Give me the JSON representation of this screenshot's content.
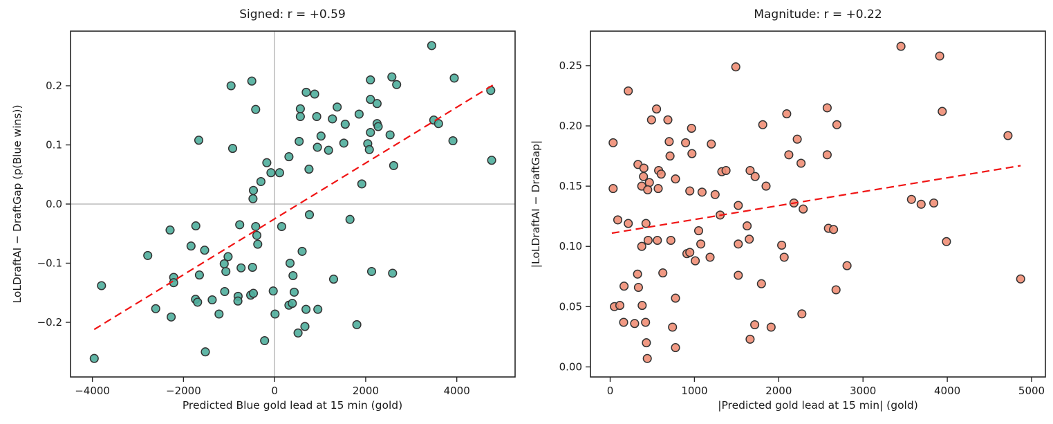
{
  "chart_data": [
    {
      "type": "scatter",
      "title": "Signed: r = +0.59",
      "xlabel": "Predicted Blue gold lead at 15 min (gold)",
      "ylabel": "LoLDraftAI − DraftGap (p(Blue wins))",
      "xlim": [
        -4480,
        5280
      ],
      "ylim": [
        -0.2924,
        0.2924
      ],
      "xticks": [
        -4000,
        -2000,
        0,
        2000,
        4000
      ],
      "xtick_labels": [
        "−4000",
        "−2000",
        "0",
        "2000",
        "4000"
      ],
      "yticks": [
        -0.2,
        -0.1,
        0.0,
        0.1,
        0.2
      ],
      "ytick_labels": [
        "−0.2",
        "−0.1",
        "0.0",
        "0.1",
        "0.2"
      ],
      "grid": false,
      "legend": null,
      "marker_color": "#4FAE9C",
      "marker_edge_color": "#333333",
      "trend_color": "#f01414",
      "ref_line_color": "#9a9a9a",
      "ref_lines": {
        "x": 0,
        "y": 0
      },
      "trend": {
        "style": "dashed",
        "x": [
          -3960,
          4790
        ],
        "y": [
          -0.212,
          0.201
        ]
      },
      "points": [
        [
          -955,
          0.2
        ],
        [
          -500,
          0.208
        ],
        [
          -415,
          0.16
        ],
        [
          -1665,
          0.108
        ],
        [
          -920,
          0.094
        ],
        [
          -170,
          0.07
        ],
        [
          -80,
          0.053
        ],
        [
          110,
          0.053
        ],
        [
          315,
          0.08
        ],
        [
          -300,
          0.038
        ],
        [
          -465,
          0.023
        ],
        [
          -475,
          0.009
        ],
        [
          3450,
          0.268
        ],
        [
          2575,
          0.215
        ],
        [
          2105,
          0.21
        ],
        [
          2680,
          0.202
        ],
        [
          3945,
          0.213
        ],
        [
          4745,
          0.192
        ],
        [
          695,
          0.189
        ],
        [
          880,
          0.186
        ],
        [
          2105,
          0.177
        ],
        [
          2250,
          0.17
        ],
        [
          1375,
          0.164
        ],
        [
          565,
          0.161
        ],
        [
          565,
          0.148
        ],
        [
          925,
          0.148
        ],
        [
          1270,
          0.144
        ],
        [
          1855,
          0.152
        ],
        [
          1550,
          0.135
        ],
        [
          2250,
          0.136
        ],
        [
          2275,
          0.131
        ],
        [
          3495,
          0.142
        ],
        [
          3600,
          0.136
        ],
        [
          1020,
          0.115
        ],
        [
          540,
          0.106
        ],
        [
          2105,
          0.121
        ],
        [
          2535,
          0.117
        ],
        [
          1520,
          0.103
        ],
        [
          940,
          0.096
        ],
        [
          1185,
          0.091
        ],
        [
          2045,
          0.102
        ],
        [
          2080,
          0.092
        ],
        [
          3915,
          0.107
        ],
        [
          4765,
          0.074
        ],
        [
          2615,
          0.065
        ],
        [
          755,
          0.059
        ],
        [
          1915,
          0.034
        ],
        [
          -2295,
          -0.044
        ],
        [
          -1730,
          -0.037
        ],
        [
          -765,
          -0.035
        ],
        [
          -415,
          -0.038
        ],
        [
          -390,
          -0.053
        ],
        [
          -370,
          -0.068
        ],
        [
          155,
          -0.038
        ],
        [
          -1835,
          -0.071
        ],
        [
          -1535,
          -0.078
        ],
        [
          -2785,
          -0.087
        ],
        [
          -1020,
          -0.089
        ],
        [
          -1105,
          -0.101
        ],
        [
          -1070,
          -0.114
        ],
        [
          -735,
          -0.108
        ],
        [
          -485,
          -0.107
        ],
        [
          -1650,
          -0.12
        ],
        [
          -2215,
          -0.124
        ],
        [
          -2215,
          -0.133
        ],
        [
          -3800,
          -0.138
        ],
        [
          -1095,
          -0.148
        ],
        [
          -800,
          -0.156
        ],
        [
          -525,
          -0.154
        ],
        [
          -465,
          -0.151
        ],
        [
          -1735,
          -0.161
        ],
        [
          -1690,
          -0.166
        ],
        [
          -1370,
          -0.162
        ],
        [
          -805,
          -0.164
        ],
        [
          -2610,
          -0.177
        ],
        [
          -2270,
          -0.191
        ],
        [
          -1220,
          -0.186
        ],
        [
          10,
          -0.186
        ],
        [
          -220,
          -0.231
        ],
        [
          -1520,
          -0.25
        ],
        [
          -3960,
          -0.261
        ],
        [
          765,
          -0.018
        ],
        [
          1655,
          -0.026
        ],
        [
          605,
          -0.08
        ],
        [
          340,
          -0.1
        ],
        [
          405,
          -0.121
        ],
        [
          1295,
          -0.127
        ],
        [
          2130,
          -0.114
        ],
        [
          2590,
          -0.117
        ],
        [
          430,
          -0.149
        ],
        [
          315,
          -0.171
        ],
        [
          390,
          -0.168
        ],
        [
          690,
          -0.178
        ],
        [
          950,
          -0.178
        ],
        [
          1805,
          -0.204
        ],
        [
          665,
          -0.207
        ],
        [
          515,
          -0.218
        ],
        [
          -30,
          -0.147
        ]
      ]
    },
    {
      "type": "scatter",
      "title": "Magnitude: r = +0.22",
      "xlabel": "|Predicted gold lead at 15 min| (gold)",
      "ylabel": "|LoLDraftAI − DraftGap|",
      "xlim": [
        -234,
        5164
      ],
      "ylim": [
        -0.00835,
        0.27865
      ],
      "xticks": [
        0,
        1000,
        2000,
        3000,
        4000,
        5000
      ],
      "xtick_labels": [
        "0",
        "1000",
        "2000",
        "3000",
        "4000",
        "5000"
      ],
      "yticks": [
        0.0,
        0.05,
        0.1,
        0.15,
        0.2,
        0.25
      ],
      "ytick_labels": [
        "0.00",
        "0.05",
        "0.10",
        "0.15",
        "0.20",
        "0.25"
      ],
      "grid": false,
      "legend": null,
      "marker_color": "#F08E76",
      "marker_edge_color": "#333333",
      "trend_color": "#f01414",
      "ref_line_color": "#9a9a9a",
      "ref_lines": null,
      "trend": {
        "style": "dashed",
        "x": [
          20,
          4870
        ],
        "y": [
          0.111,
          0.167
        ]
      },
      "points": [
        [
          1490,
          0.249
        ],
        [
          215,
          0.229
        ],
        [
          550,
          0.214
        ],
        [
          490,
          0.205
        ],
        [
          685,
          0.205
        ],
        [
          965,
          0.198
        ],
        [
          2095,
          0.21
        ],
        [
          1810,
          0.201
        ],
        [
          35,
          0.186
        ],
        [
          700,
          0.187
        ],
        [
          895,
          0.186
        ],
        [
          1200,
          0.185
        ],
        [
          2220,
          0.189
        ],
        [
          710,
          0.175
        ],
        [
          970,
          0.177
        ],
        [
          2120,
          0.176
        ],
        [
          2265,
          0.169
        ],
        [
          330,
          0.168
        ],
        [
          400,
          0.165
        ],
        [
          575,
          0.163
        ],
        [
          605,
          0.16
        ],
        [
          395,
          0.158
        ],
        [
          465,
          0.153
        ],
        [
          375,
          0.15
        ],
        [
          445,
          0.147
        ],
        [
          570,
          0.148
        ],
        [
          775,
          0.156
        ],
        [
          35,
          0.148
        ],
        [
          1325,
          0.162
        ],
        [
          1375,
          0.163
        ],
        [
          945,
          0.146
        ],
        [
          1090,
          0.145
        ],
        [
          1245,
          0.143
        ],
        [
          1660,
          0.163
        ],
        [
          1720,
          0.158
        ],
        [
          1850,
          0.15
        ],
        [
          3450,
          0.266
        ],
        [
          3910,
          0.258
        ],
        [
          2575,
          0.215
        ],
        [
          2690,
          0.201
        ],
        [
          3940,
          0.212
        ],
        [
          4720,
          0.192
        ],
        [
          2575,
          0.176
        ],
        [
          90,
          0.122
        ],
        [
          215,
          0.119
        ],
        [
          425,
          0.119
        ],
        [
          1305,
          0.126
        ],
        [
          1520,
          0.134
        ],
        [
          1050,
          0.113
        ],
        [
          375,
          0.1
        ],
        [
          450,
          0.105
        ],
        [
          560,
          0.105
        ],
        [
          720,
          0.105
        ],
        [
          910,
          0.094
        ],
        [
          945,
          0.095
        ],
        [
          1010,
          0.088
        ],
        [
          1075,
          0.102
        ],
        [
          1185,
          0.091
        ],
        [
          1520,
          0.102
        ],
        [
          1625,
          0.117
        ],
        [
          1650,
          0.106
        ],
        [
          2035,
          0.101
        ],
        [
          2065,
          0.091
        ],
        [
          325,
          0.077
        ],
        [
          625,
          0.078
        ],
        [
          165,
          0.067
        ],
        [
          335,
          0.066
        ],
        [
          1520,
          0.076
        ],
        [
          1795,
          0.069
        ],
        [
          775,
          0.057
        ],
        [
          50,
          0.05
        ],
        [
          115,
          0.051
        ],
        [
          380,
          0.051
        ],
        [
          160,
          0.037
        ],
        [
          290,
          0.036
        ],
        [
          420,
          0.037
        ],
        [
          740,
          0.033
        ],
        [
          2275,
          0.044
        ],
        [
          1715,
          0.035
        ],
        [
          1910,
          0.033
        ],
        [
          1660,
          0.023
        ],
        [
          430,
          0.02
        ],
        [
          775,
          0.016
        ],
        [
          440,
          0.007
        ],
        [
          2180,
          0.136
        ],
        [
          2290,
          0.131
        ],
        [
          3575,
          0.139
        ],
        [
          3690,
          0.135
        ],
        [
          3840,
          0.136
        ],
        [
          2590,
          0.115
        ],
        [
          2650,
          0.114
        ],
        [
          3990,
          0.104
        ],
        [
          2810,
          0.084
        ],
        [
          4870,
          0.073
        ],
        [
          2680,
          0.064
        ]
      ]
    }
  ]
}
